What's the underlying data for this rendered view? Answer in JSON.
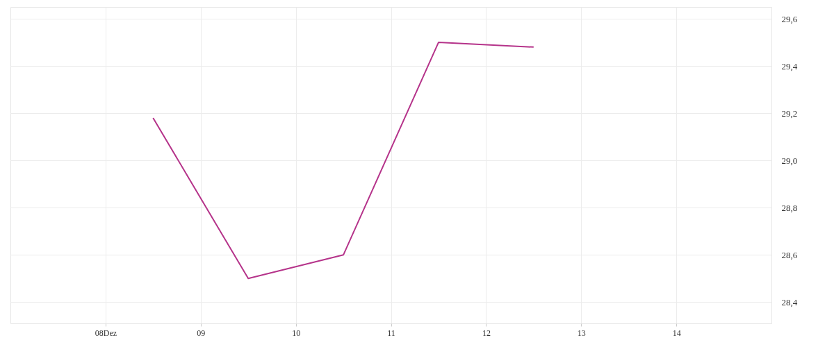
{
  "chart_data": {
    "type": "line",
    "x": [
      8.5,
      9.5,
      10.5,
      11.5,
      12.5
    ],
    "series": [
      {
        "color": "#b5338a",
        "values": [
          29.18,
          28.5,
          28.6,
          29.5,
          29.48
        ]
      }
    ],
    "xlim": [
      7,
      15
    ],
    "xticks": [
      {
        "value": 8,
        "label": "08Dez"
      },
      {
        "value": 9,
        "label": "09"
      },
      {
        "value": 10,
        "label": "10"
      },
      {
        "value": 11,
        "label": "11"
      },
      {
        "value": 12,
        "label": "12"
      },
      {
        "value": 13,
        "label": "13"
      },
      {
        "value": 14,
        "label": "14"
      }
    ],
    "ylim": [
      28.31,
      29.65
    ],
    "yticks": [
      {
        "value": 28.4,
        "label": "28,4"
      },
      {
        "value": 28.6,
        "label": "28,6"
      },
      {
        "value": 28.8,
        "label": "28,8"
      },
      {
        "value": 29.0,
        "label": "29,0"
      },
      {
        "value": 29.2,
        "label": "29,2"
      },
      {
        "value": 29.4,
        "label": "29,4"
      },
      {
        "value": 29.6,
        "label": "29,6"
      }
    ],
    "grid": true,
    "marker": "none",
    "line_style": "solid"
  }
}
